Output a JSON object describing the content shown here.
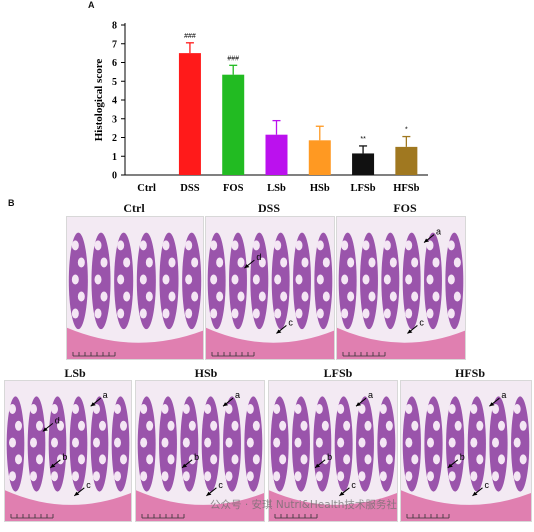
{
  "panel_a_label": "A",
  "panel_b_label": "B",
  "chart_data": {
    "type": "bar",
    "ylabel": "Histological score",
    "xlabel": "",
    "ylim": [
      0,
      8
    ],
    "yticks": [
      "0",
      "1",
      "2",
      "3",
      "4",
      "5",
      "6",
      "7",
      "8"
    ],
    "categories": [
      "Ctrl",
      "DSS",
      "FOS",
      "LSb",
      "HSb",
      "LFSb",
      "HFSb"
    ],
    "values": [
      0,
      6.5,
      5.35,
      2.15,
      1.85,
      1.15,
      1.5
    ],
    "errors": [
      0,
      0.55,
      0.5,
      0.75,
      0.75,
      0.4,
      0.55
    ],
    "colors": [
      "#ffffff",
      "#ff1a1a",
      "#22bb22",
      "#bb11ee",
      "#ff9922",
      "#111111",
      "#a07820"
    ],
    "annotations": [
      "",
      "###",
      "###",
      "",
      "",
      "**",
      "*"
    ]
  },
  "micrographs": [
    {
      "title": "Ctrl",
      "arrows": []
    },
    {
      "title": "DSS",
      "arrows": [
        "d",
        "c"
      ]
    },
    {
      "title": "FOS",
      "arrows": [
        "a",
        "c"
      ]
    },
    {
      "title": "LSb",
      "arrows": [
        "a",
        "d",
        "b",
        "c"
      ]
    },
    {
      "title": "HSb",
      "arrows": [
        "a",
        "b",
        "c"
      ]
    },
    {
      "title": "LFSb",
      "arrows": [
        "a",
        "b",
        "c"
      ]
    },
    {
      "title": "HFSb",
      "arrows": [
        "a",
        "b",
        "c"
      ]
    }
  ],
  "watermark": "公众号 · 安琪 Nutri&Health技术服务社"
}
